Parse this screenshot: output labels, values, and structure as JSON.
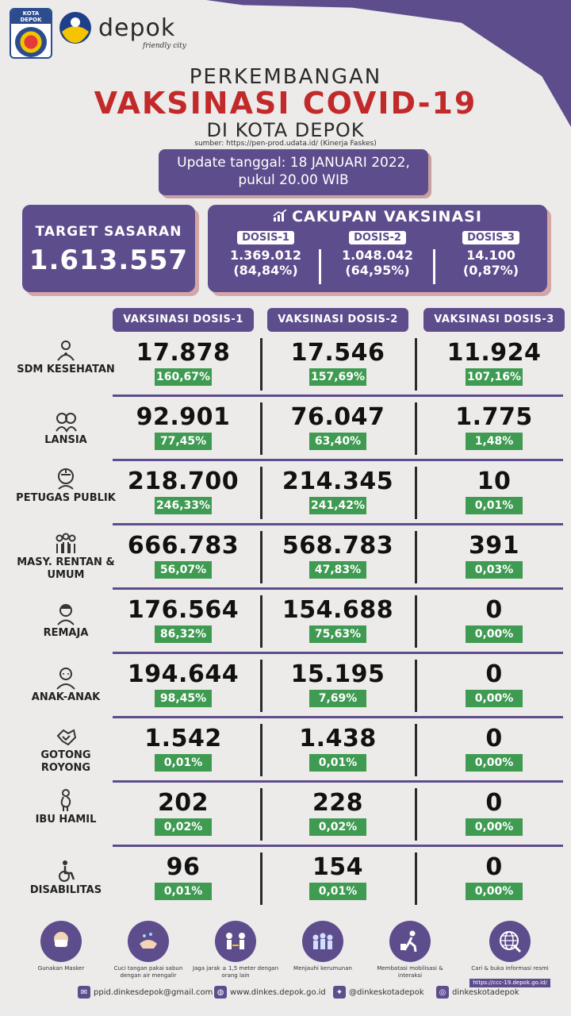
{
  "header": {
    "emblem_caption": "KOTA DEPOK",
    "brand": "depok",
    "brand_tagline": "friendly city",
    "title_line1": "PERKEMBANGAN",
    "title_line2": "VAKSINASI COVID-19",
    "title_line3": "DI KOTA DEPOK",
    "source": "sumber: https://pen-prod.udata.id/ (Kinerja Faskes)"
  },
  "update": {
    "line1": "Update tanggal: 18 JANUARI 2022,",
    "line2": "pukul 20.00 WIB"
  },
  "target": {
    "label": "TARGET SASARAN",
    "value": "1.613.557"
  },
  "cakupan": {
    "title": "CAKUPAN VAKSINASI",
    "doses": [
      {
        "label": "DOSIS-1",
        "value": "1.369.012",
        "pct": "(84,84%)"
      },
      {
        "label": "DOSIS-2",
        "value": "1.048.042",
        "pct": "(64,95%)"
      },
      {
        "label": "DOSIS-3",
        "value": "14.100",
        "pct": "(0,87%)"
      }
    ]
  },
  "columns": [
    "VAKSINASI DOSIS-1",
    "VAKSINASI DOSIS-2",
    "VAKSINASI DOSIS-3"
  ],
  "rows": [
    {
      "label": "SDM KESEHATAN",
      "icon": "health-worker-icon",
      "d1": "17.878",
      "p1": "160,67%",
      "d2": "17.546",
      "p2": "157,69%",
      "d3": "11.924",
      "p3": "107,16%"
    },
    {
      "label": "LANSIA",
      "icon": "elderly-icon",
      "d1": "92.901",
      "p1": "77,45%",
      "d2": "76.047",
      "p2": "63,40%",
      "d3": "1.775",
      "p3": "1,48%"
    },
    {
      "label": "PETUGAS PUBLIK",
      "icon": "public-officer-icon",
      "d1": "218.700",
      "p1": "246,33%",
      "d2": "214.345",
      "p2": "241,42%",
      "d3": "10",
      "p3": "0,01%"
    },
    {
      "label": "MASY. RENTAN & UMUM",
      "icon": "community-icon",
      "d1": "666.783",
      "p1": "56,07%",
      "d2": "568.783",
      "p2": "47,83%",
      "d3": "391",
      "p3": "0,03%"
    },
    {
      "label": "REMAJA",
      "icon": "teenager-icon",
      "d1": "176.564",
      "p1": "86,32%",
      "d2": "154.688",
      "p2": "75,63%",
      "d3": "0",
      "p3": "0,00%"
    },
    {
      "label": "ANAK-ANAK",
      "icon": "child-icon",
      "d1": "194.644",
      "p1": "98,45%",
      "d2": "15.195",
      "p2": "7,69%",
      "d3": "0",
      "p3": "0,00%"
    },
    {
      "label": "GOTONG ROYONG",
      "icon": "cooperation-icon",
      "d1": "1.542",
      "p1": "0,01%",
      "d2": "1.438",
      "p2": "0,01%",
      "d3": "0",
      "p3": "0,00%"
    },
    {
      "label": "IBU HAMIL",
      "icon": "pregnant-icon",
      "d1": "202",
      "p1": "0,02%",
      "d2": "228",
      "p2": "0,02%",
      "d3": "0",
      "p3": "0,00%"
    },
    {
      "label": "DISABILITAS",
      "icon": "wheelchair-icon",
      "d1": "96",
      "p1": "0,01%",
      "d2": "154",
      "p2": "0,01%",
      "d3": "0",
      "p3": "0,00%"
    }
  ],
  "footer": {
    "tips": [
      {
        "text": "Gunakan Masker",
        "icon": "mask-icon"
      },
      {
        "text": "Cuci tangan pakai sabun dengan air mengalir",
        "icon": "handwash-icon"
      },
      {
        "text": "Jaga jarak ± 1,5 meter dengan orang lain",
        "icon": "distance-icon"
      },
      {
        "text": "Menjauhi kerumunan",
        "icon": "crowd-icon"
      },
      {
        "text": "Membatasi mobilisasi & interaksi",
        "icon": "limit-mobility-icon"
      },
      {
        "text": "Cari & buka informasi resmi",
        "icon": "globe-icon",
        "extra": "https://ccc-19.depok.go.id/"
      }
    ],
    "contacts": {
      "email": "ppid.dinkesdepok@gmail.com",
      "web": "www.dinkes.depok.go.id",
      "twitter": "@dinkeskotadepok",
      "instagram": "dinkeskotadepok"
    }
  }
}
